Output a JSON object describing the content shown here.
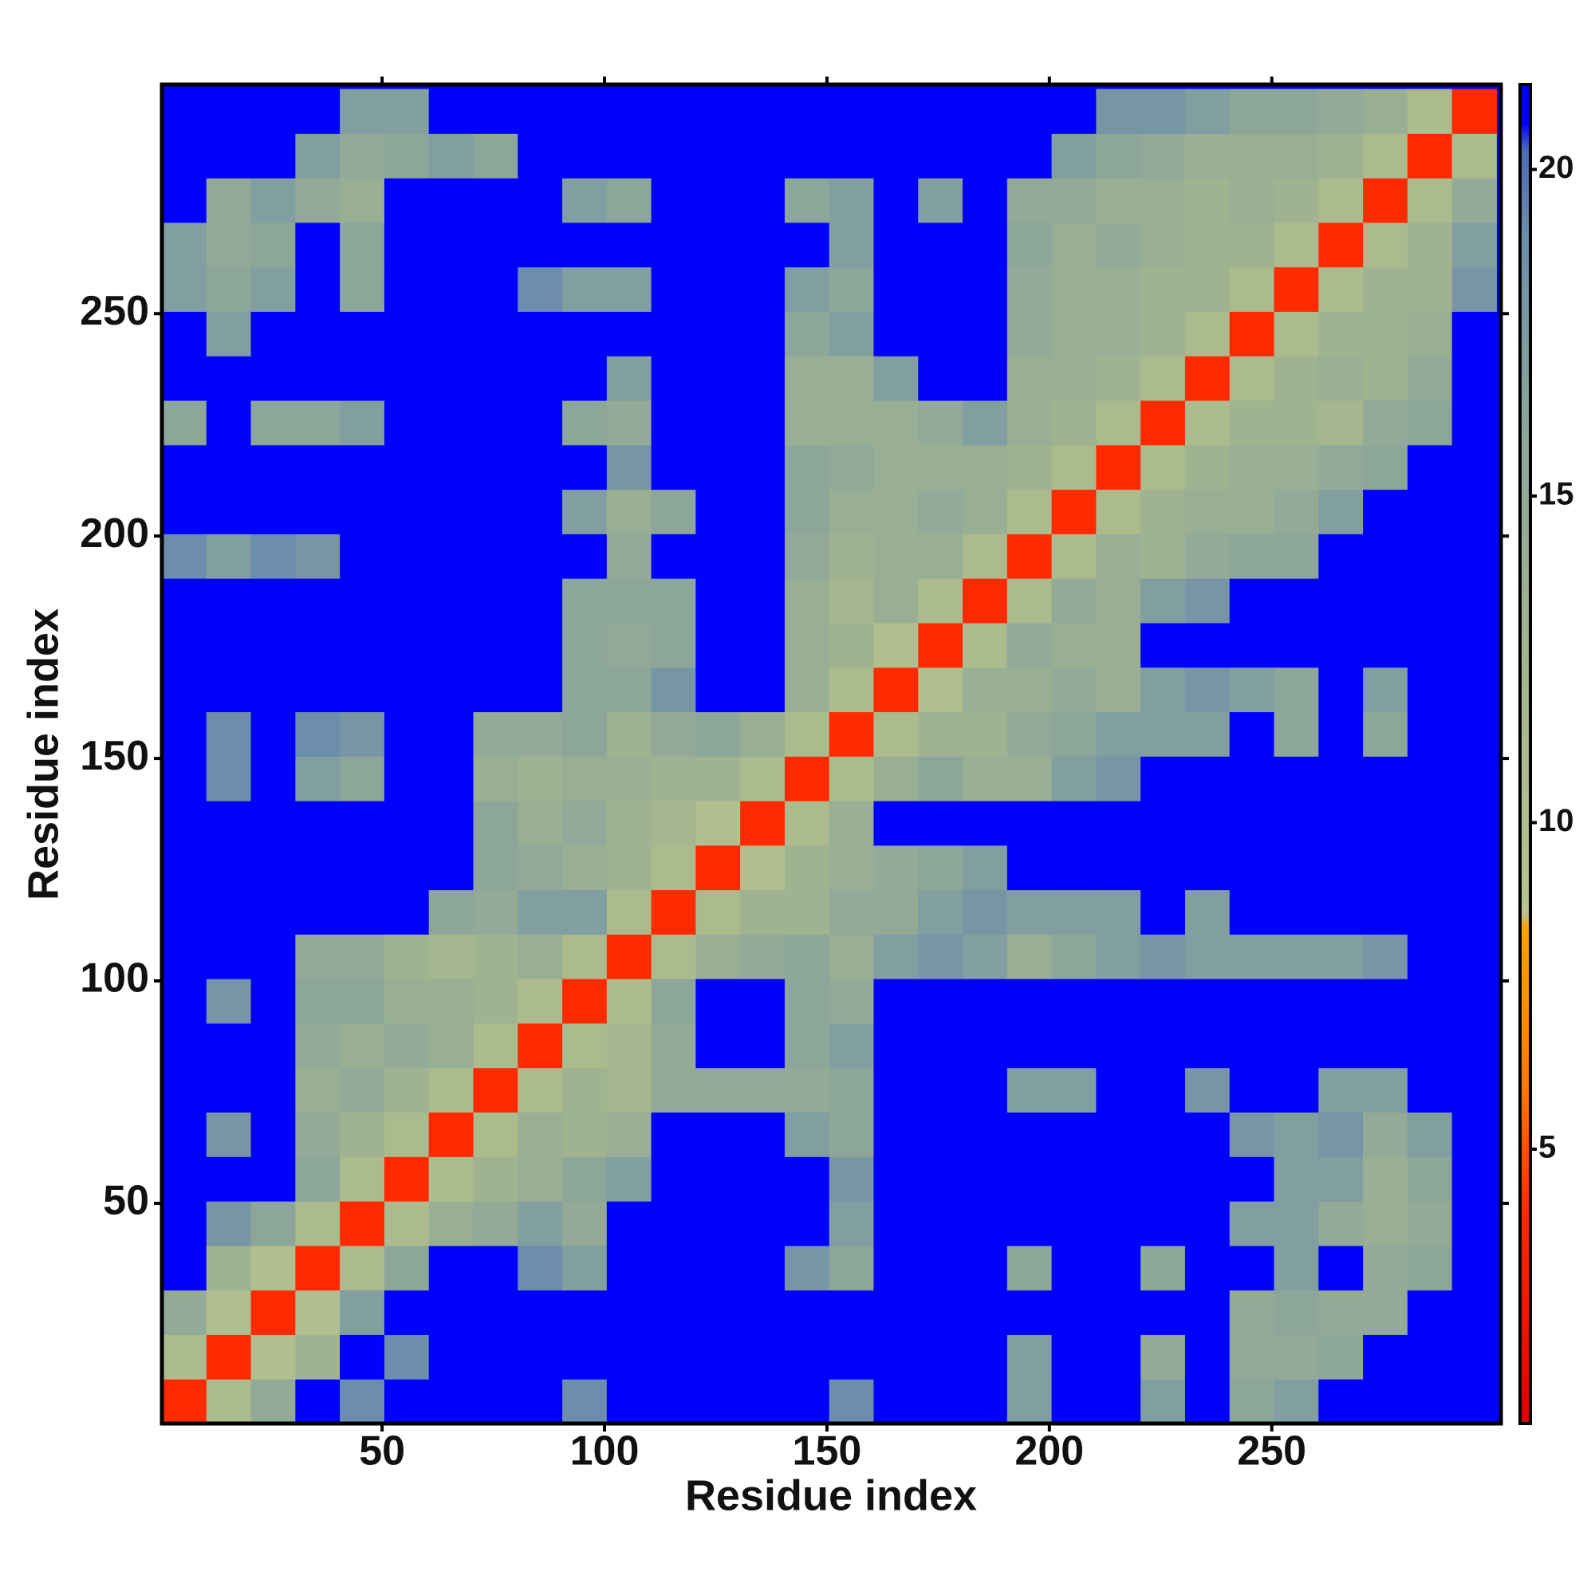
{
  "chart_data": {
    "type": "heatmap",
    "xlabel": "Residue index",
    "ylabel": "Residue index",
    "xlim": [
      0.5,
      301.5
    ],
    "ylim": [
      0.5,
      301.5
    ],
    "xticks": [
      50,
      100,
      150,
      200,
      250
    ],
    "yticks": [
      50,
      100,
      150,
      200,
      250
    ],
    "xbins": [
      0.5,
      10.5,
      20.5,
      30.5,
      40.5,
      50.5,
      60.5,
      70.5,
      80.5,
      90.5,
      100.5,
      110.5,
      120.5,
      130.5,
      140.5,
      150.5,
      160.5,
      170.5,
      180.5,
      190.5,
      200.5,
      210.5,
      220.5,
      230.5,
      240.5,
      250.5,
      260.5,
      270.5,
      280.5,
      290.5,
      300.5
    ],
    "ybins": [
      0.5,
      10.5,
      20.5,
      30.5,
      40.5,
      50.5,
      60.5,
      70.5,
      80.5,
      90.5,
      100.5,
      110.5,
      120.5,
      130.5,
      140.5,
      150.5,
      160.5,
      170.5,
      180.5,
      190.5,
      200.5,
      210.5,
      220.5,
      230.5,
      240.5,
      250.5,
      260.5,
      270.5,
      280.5,
      290.5,
      300.5
    ],
    "clim": [
      0.8,
      21.3
    ],
    "cticks": [
      5,
      10,
      15,
      20
    ],
    "colorscale": [
      [
        0.8,
        "#e00000"
      ],
      [
        4,
        "#ff2a00"
      ],
      [
        6,
        "#ff7a00"
      ],
      [
        8.4,
        "#ffa000"
      ],
      [
        8.6,
        "#b8c48c"
      ],
      [
        12,
        "#a5b78e"
      ],
      [
        16,
        "#8ca69a"
      ],
      [
        19,
        "#6c8dab"
      ],
      [
        20.3,
        "#4a6ab8"
      ],
      [
        20.7,
        "#0000ff"
      ],
      [
        21.3,
        "#0000ff"
      ]
    ],
    "z": [
      [
        4,
        11,
        15,
        21,
        19,
        21,
        21,
        21,
        21,
        19,
        21,
        21,
        21,
        21,
        21,
        19,
        21,
        21,
        21,
        17,
        21,
        21,
        17,
        21,
        16,
        17,
        21,
        21,
        21,
        21
      ],
      [
        11,
        4,
        10,
        13,
        21,
        19,
        21,
        21,
        21,
        21,
        21,
        21,
        21,
        21,
        21,
        21,
        21,
        21,
        21,
        17,
        21,
        21,
        15,
        21,
        15,
        15,
        16,
        21,
        21,
        21
      ],
      [
        15,
        10,
        4,
        10,
        17,
        21,
        21,
        21,
        21,
        21,
        21,
        21,
        21,
        21,
        21,
        21,
        21,
        21,
        21,
        21,
        21,
        21,
        21,
        21,
        15,
        16,
        15,
        15,
        21,
        21
      ],
      [
        21,
        13,
        10,
        4,
        11,
        16,
        21,
        21,
        19,
        17,
        21,
        21,
        21,
        21,
        18,
        16,
        21,
        21,
        21,
        16,
        21,
        21,
        16,
        21,
        21,
        17,
        21,
        15,
        16,
        21
      ],
      [
        21,
        18,
        16,
        11,
        4,
        11,
        14,
        15,
        17,
        15,
        21,
        21,
        21,
        21,
        21,
        17,
        21,
        21,
        21,
        21,
        21,
        21,
        21,
        21,
        17,
        17,
        15,
        14,
        15,
        21
      ],
      [
        21,
        21,
        21,
        16,
        11,
        4,
        11,
        13,
        14,
        16,
        17,
        21,
        21,
        21,
        21,
        18,
        21,
        21,
        21,
        21,
        21,
        21,
        21,
        21,
        21,
        17,
        17,
        14,
        16,
        21
      ],
      [
        21,
        18,
        21,
        15,
        13,
        11,
        4,
        11,
        14,
        13,
        14,
        21,
        21,
        21,
        17,
        16,
        21,
        21,
        21,
        21,
        21,
        21,
        21,
        21,
        18,
        17,
        18,
        15,
        17,
        21
      ],
      [
        21,
        21,
        21,
        14,
        15,
        13,
        11,
        4,
        11,
        13,
        12,
        15,
        15,
        15,
        15,
        16,
        21,
        21,
        21,
        17,
        17,
        21,
        21,
        18,
        21,
        21,
        17,
        17,
        21,
        21
      ],
      [
        21,
        21,
        21,
        15,
        14,
        15,
        14,
        11,
        4,
        11,
        12,
        15,
        21,
        21,
        16,
        17,
        21,
        21,
        21,
        21,
        21,
        21,
        21,
        21,
        21,
        21,
        21,
        21,
        21,
        21
      ],
      [
        21,
        18,
        21,
        16,
        16,
        14,
        14,
        13,
        11,
        4,
        11,
        16,
        21,
        21,
        16,
        15,
        21,
        21,
        21,
        21,
        21,
        21,
        21,
        21,
        21,
        21,
        21,
        21,
        21,
        21
      ],
      [
        21,
        21,
        21,
        15,
        15,
        13,
        12,
        13,
        14,
        11,
        4,
        11,
        14,
        15,
        16,
        14,
        17,
        18,
        17,
        14,
        16,
        17,
        18,
        17,
        17,
        17,
        17,
        18,
        21,
        21
      ],
      [
        21,
        21,
        21,
        21,
        21,
        21,
        16,
        15,
        17,
        17,
        11,
        4,
        11,
        13,
        13,
        15,
        15,
        17,
        18,
        17,
        17,
        17,
        21,
        17,
        21,
        21,
        21,
        21,
        21,
        21
      ],
      [
        21,
        21,
        21,
        21,
        21,
        21,
        21,
        16,
        15,
        14,
        13,
        11,
        4,
        10,
        13,
        14,
        15,
        16,
        17,
        21,
        21,
        21,
        21,
        21,
        21,
        21,
        21,
        21,
        21,
        21
      ],
      [
        21,
        21,
        21,
        21,
        21,
        21,
        21,
        16,
        14,
        15,
        13,
        12,
        10,
        4,
        11,
        14,
        21,
        21,
        21,
        21,
        21,
        21,
        21,
        21,
        21,
        21,
        21,
        21,
        21,
        21
      ],
      [
        21,
        19,
        21,
        17,
        16,
        21,
        21,
        14,
        13,
        14,
        14,
        13,
        13,
        11,
        4,
        11,
        14,
        16,
        14,
        14,
        17,
        18,
        21,
        21,
        21,
        21,
        21,
        21,
        21,
        21
      ],
      [
        21,
        19,
        21,
        19,
        18,
        21,
        21,
        15,
        15,
        16,
        13,
        15,
        16,
        14,
        11,
        4,
        11,
        13,
        13,
        15,
        16,
        17,
        17,
        17,
        21,
        16,
        21,
        16,
        21,
        21
      ],
      [
        21,
        21,
        21,
        21,
        21,
        21,
        21,
        21,
        21,
        16,
        16,
        18,
        21,
        21,
        14,
        11,
        4,
        10,
        14,
        14,
        15,
        14,
        17,
        18,
        17,
        16,
        21,
        17,
        21,
        21
      ],
      [
        21,
        21,
        21,
        21,
        21,
        21,
        21,
        21,
        21,
        16,
        15,
        16,
        21,
        21,
        14,
        13,
        10,
        4,
        11,
        15,
        14,
        14,
        21,
        21,
        21,
        21,
        21,
        21,
        21,
        21
      ],
      [
        21,
        21,
        21,
        21,
        21,
        21,
        21,
        21,
        21,
        16,
        16,
        16,
        21,
        21,
        14,
        12,
        14,
        11,
        4,
        11,
        15,
        14,
        17,
        18,
        21,
        21,
        21,
        21,
        21,
        21
      ],
      [
        19,
        17,
        19,
        18,
        21,
        21,
        21,
        21,
        21,
        21,
        15,
        21,
        21,
        21,
        15,
        13,
        14,
        14,
        11,
        4,
        11,
        14,
        13,
        15,
        16,
        16,
        21,
        21,
        21,
        21
      ],
      [
        21,
        21,
        21,
        21,
        21,
        21,
        21,
        21,
        21,
        17,
        14,
        16,
        21,
        21,
        16,
        14,
        14,
        15,
        14,
        11,
        4,
        11,
        13,
        14,
        14,
        15,
        17,
        21,
        21,
        21
      ],
      [
        21,
        21,
        21,
        21,
        21,
        21,
        21,
        21,
        21,
        21,
        18,
        21,
        21,
        21,
        16,
        15,
        14,
        14,
        14,
        13,
        11,
        4,
        11,
        13,
        14,
        14,
        15,
        16,
        21,
        21
      ],
      [
        16,
        21,
        16,
        16,
        17,
        21,
        21,
        21,
        21,
        16,
        15,
        21,
        21,
        21,
        14,
        14,
        14,
        15,
        17,
        14,
        13,
        11,
        4,
        11,
        13,
        13,
        12,
        15,
        16,
        21
      ],
      [
        21,
        21,
        21,
        21,
        21,
        21,
        21,
        21,
        21,
        21,
        17,
        21,
        21,
        21,
        14,
        14,
        17,
        21,
        21,
        14,
        14,
        13,
        11,
        4,
        11,
        13,
        14,
        13,
        15,
        21
      ],
      [
        21,
        17,
        21,
        21,
        21,
        21,
        21,
        21,
        21,
        21,
        21,
        21,
        21,
        21,
        16,
        17,
        21,
        21,
        21,
        15,
        14,
        14,
        13,
        11,
        4,
        11,
        13,
        13,
        14,
        21
      ],
      [
        17,
        16,
        17,
        21,
        16,
        21,
        21,
        21,
        19,
        17,
        17,
        21,
        21,
        21,
        17,
        16,
        21,
        21,
        21,
        15,
        14,
        14,
        13,
        13,
        11,
        4,
        11,
        13,
        13,
        18
      ],
      [
        17,
        15,
        16,
        21,
        16,
        21,
        21,
        21,
        21,
        21,
        21,
        21,
        21,
        21,
        21,
        17,
        21,
        21,
        21,
        16,
        14,
        15,
        14,
        13,
        13,
        11,
        4,
        11,
        13,
        17
      ],
      [
        21,
        15,
        17,
        15,
        14,
        21,
        21,
        21,
        21,
        17,
        16,
        21,
        21,
        21,
        16,
        17,
        21,
        17,
        21,
        15,
        15,
        14,
        14,
        13,
        14,
        13,
        11,
        4,
        11,
        15
      ],
      [
        21,
        21,
        21,
        17,
        15,
        16,
        17,
        16,
        21,
        21,
        21,
        21,
        21,
        21,
        21,
        21,
        21,
        21,
        21,
        21,
        17,
        16,
        15,
        14,
        14,
        14,
        13,
        11,
        4,
        11
      ],
      [
        21,
        21,
        21,
        21,
        17,
        17,
        21,
        21,
        21,
        21,
        21,
        21,
        21,
        21,
        21,
        21,
        21,
        21,
        21,
        21,
        21,
        18,
        18,
        17,
        16,
        16,
        15,
        14,
        11,
        4
      ]
    ]
  }
}
